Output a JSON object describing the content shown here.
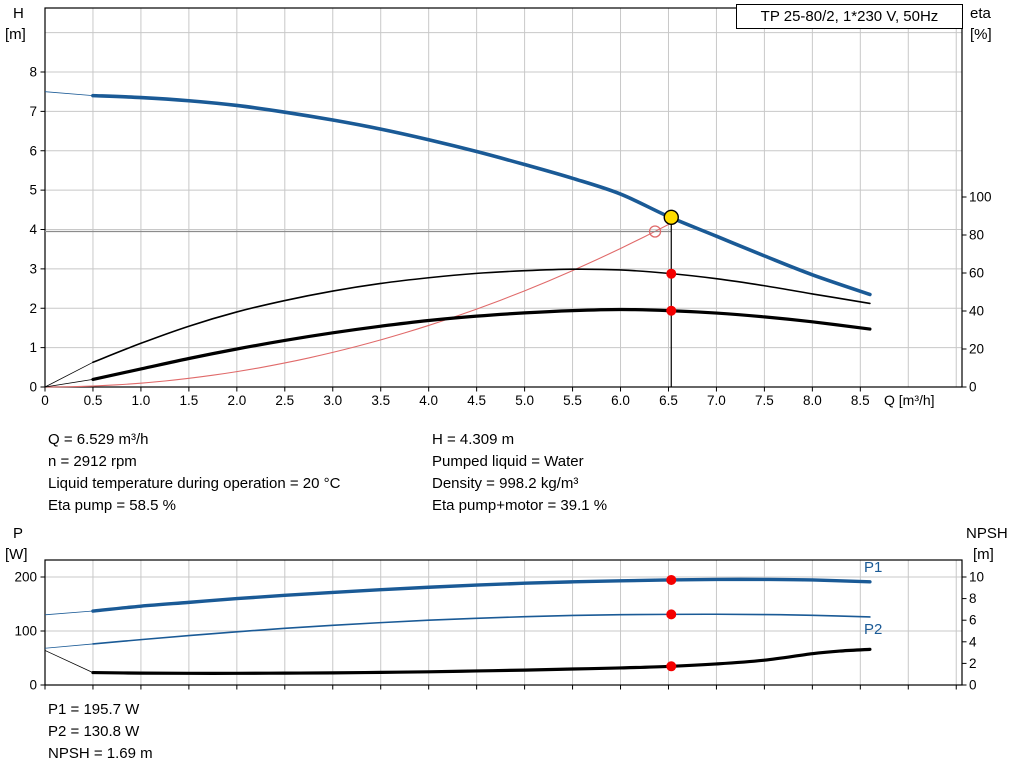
{
  "title_box": {
    "label": "TP 25-80/2, 1*230 V, 50Hz"
  },
  "axis_corner_labels": {
    "top_left_quantity": "H",
    "top_left_unit": "[m]",
    "top_right_quantity": "eta",
    "top_right_unit": "[%]",
    "bottom_left_quantity": "P",
    "bottom_left_unit": "[W]",
    "bottom_right_quantity": "NPSH",
    "bottom_right_unit": "[m]"
  },
  "info_top": {
    "col1": [
      "Q = 6.529 m³/h",
      "n = 2912 rpm",
      "Liquid temperature during operation = 20 °C",
      "Eta pump = 58.5 %"
    ],
    "col2": [
      "H = 4.309 m",
      "Pumped liquid = Water",
      "Density = 998.2 kg/m³",
      "Eta pump+motor = 39.1 %"
    ]
  },
  "info_bottom": [
    "P1 = 195.7 W",
    "P2 = 130.8 W",
    "NPSH = 1.69 m"
  ],
  "colors": {
    "curve_blue": "#1A5A96",
    "curve_black": "#000000",
    "system_red": "#E06A6A",
    "marker_red": "#F40000",
    "marker_yellow": "#FFDC00",
    "grid": "#C8C8C8",
    "crosshair": "#8C8C8C"
  },
  "chart_data": [
    {
      "type": "line",
      "title": "TP 25-80/2, 1*230 V, 50Hz",
      "xlabel": "Q [m³/h]",
      "x_range": [
        0,
        9.56
      ],
      "x_ticks": [
        [
          0,
          "0"
        ],
        [
          0.5,
          "0.5"
        ],
        [
          1,
          "1.0"
        ],
        [
          1.5,
          "1.5"
        ],
        [
          2,
          "2.0"
        ],
        [
          2.5,
          "2.5"
        ],
        [
          3,
          "3.0"
        ],
        [
          3.5,
          "3.5"
        ],
        [
          4,
          "4.0"
        ],
        [
          4.5,
          "4.5"
        ],
        [
          5,
          "5.0"
        ],
        [
          5.5,
          "5.5"
        ],
        [
          6,
          "6.0"
        ],
        [
          6.5,
          "6.5"
        ],
        [
          7,
          "7.0"
        ],
        [
          7.5,
          "7.5"
        ],
        [
          8,
          "8.0"
        ],
        [
          8.5,
          "8.5"
        ]
      ],
      "left_axis_label": "H [m]",
      "left_range": [
        0,
        9.6
      ],
      "left_ticks": [
        [
          0,
          "0"
        ],
        [
          1,
          "1"
        ],
        [
          2,
          "2"
        ],
        [
          3,
          "3"
        ],
        [
          4,
          "4"
        ],
        [
          5,
          "5"
        ],
        [
          6,
          "6"
        ],
        [
          7,
          "7"
        ],
        [
          8,
          "8"
        ]
      ],
      "right_axis_label": "eta [%]",
      "right_ticks": [
        [
          0,
          "0"
        ],
        [
          20,
          "20"
        ],
        [
          40,
          "40"
        ],
        [
          60,
          "60"
        ],
        [
          80,
          "80"
        ],
        [
          100,
          "100"
        ]
      ],
      "series": [
        {
          "name": "Head",
          "axis": "H",
          "color": "blue",
          "width": 3.6,
          "lead_in": [
            0,
            7.5
          ],
          "x": [
            0.5,
            1,
            1.5,
            2,
            2.5,
            3,
            3.5,
            4,
            4.5,
            5,
            5.5,
            6,
            6.5,
            7,
            7.5,
            8,
            8.6
          ],
          "y": [
            7.4,
            7.35,
            7.27,
            7.15,
            6.98,
            6.78,
            6.55,
            6.28,
            5.98,
            5.65,
            5.3,
            4.9,
            4.33,
            3.83,
            3.33,
            2.85,
            2.35
          ]
        },
        {
          "name": "Eta pump",
          "axis": "eta",
          "color": "black",
          "width": 1.6,
          "lead_in": [
            0,
            0
          ],
          "x": [
            0.5,
            1,
            1.5,
            2,
            2.5,
            3,
            3.5,
            4,
            4.5,
            5,
            5.5,
            6,
            6.5,
            7,
            7.5,
            8,
            8.6
          ],
          "y": [
            13,
            23,
            32,
            39.5,
            45.5,
            50.5,
            54.5,
            57.5,
            59.8,
            61.2,
            62,
            61.6,
            59.8,
            57,
            53.3,
            49,
            44
          ]
        },
        {
          "name": "Eta pump plus motor",
          "axis": "eta",
          "color": "black",
          "width": 3.2,
          "lead_in": [
            0,
            0
          ],
          "x": [
            0.5,
            1,
            1.5,
            2,
            2.5,
            3,
            3.5,
            4,
            4.5,
            5,
            5.5,
            6,
            6.5,
            7,
            7.5,
            8,
            8.6
          ],
          "y": [
            4,
            9.5,
            15,
            20,
            24.5,
            28.5,
            32,
            35,
            37.3,
            39,
            40.2,
            40.8,
            40.2,
            38.9,
            36.9,
            34.3,
            30.5
          ]
        }
      ],
      "system_curve": {
        "coeff": 0.0977,
        "q_end": 6.55
      },
      "duty_point": {
        "q": 6.529,
        "h": 4.309
      },
      "open_point": {
        "q": 6.36,
        "h": 3.95
      },
      "dot_series": [
        "Eta pump",
        "Eta pump plus motor"
      ]
    },
    {
      "type": "line",
      "xlabel": "Q [m³/h]",
      "left_axis_label": "P [W]",
      "left_ticks": [
        [
          0,
          "0"
        ],
        [
          100,
          "100"
        ],
        [
          200,
          "200"
        ]
      ],
      "right_axis_label": "NPSH [m]",
      "right_ticks": [
        [
          0,
          "0"
        ],
        [
          2,
          "2"
        ],
        [
          4,
          "4"
        ],
        [
          6,
          "6"
        ],
        [
          8,
          "8"
        ],
        [
          10,
          "10"
        ]
      ],
      "series": [
        {
          "name": "NPSH",
          "axis": "NPSH",
          "color": "black",
          "width": 3.2,
          "lead_in": [
            0,
            3.2
          ],
          "x": [
            0.5,
            1,
            1.5,
            2,
            2.5,
            3,
            3.5,
            4,
            4.5,
            5,
            5.5,
            6,
            6.5,
            7,
            7.5,
            8,
            8.3,
            8.6
          ],
          "y": [
            1.15,
            1.1,
            1.08,
            1.08,
            1.1,
            1.12,
            1.17,
            1.22,
            1.3,
            1.38,
            1.48,
            1.58,
            1.72,
            1.95,
            2.3,
            2.9,
            3.15,
            3.3
          ]
        },
        {
          "name": "P2",
          "axis": "P",
          "color": "blue",
          "width": 1.6,
          "lead_in": [
            0,
            68
          ],
          "x": [
            0.5,
            1,
            1.5,
            2,
            2.5,
            3,
            3.5,
            4,
            4.5,
            5,
            5.5,
            6,
            6.5,
            7,
            7.5,
            8,
            8.6
          ],
          "y": [
            76,
            84,
            91.5,
            98.5,
            105,
            110.5,
            115.5,
            120,
            123.5,
            126.5,
            128.8,
            130.2,
            130.8,
            131,
            130.5,
            129,
            126
          ]
        },
        {
          "name": "P1",
          "axis": "P",
          "color": "blue",
          "width": 3.4,
          "lead_in": [
            0,
            130
          ],
          "x": [
            0.5,
            1,
            1.5,
            2,
            2.5,
            3,
            3.5,
            4,
            4.5,
            5,
            5.5,
            6,
            6.5,
            7,
            7.5,
            8,
            8.6
          ],
          "y": [
            137,
            146,
            153,
            160,
            166,
            171.5,
            176.5,
            181,
            185,
            188.5,
            191,
            193,
            194.5,
            195.5,
            195.5,
            194.5,
            191
          ]
        }
      ],
      "duty_q": 6.529,
      "dot_series": [
        "P1",
        "P2",
        "NPSH"
      ],
      "series_labels": [
        {
          "series": "P1",
          "text": "P1"
        },
        {
          "series": "P2",
          "text": "P2"
        }
      ]
    }
  ]
}
